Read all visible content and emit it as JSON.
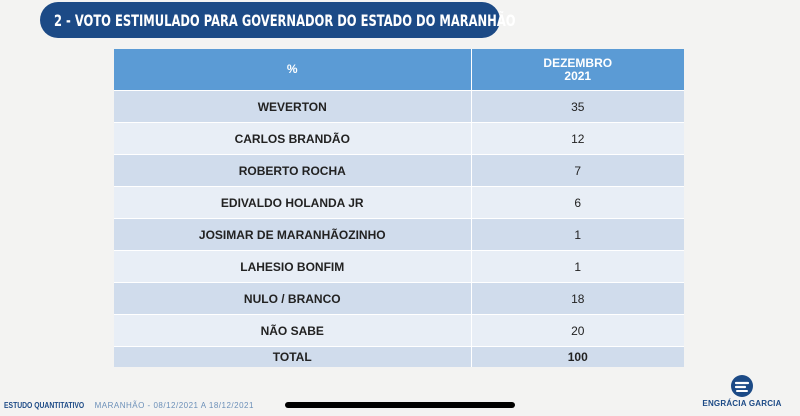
{
  "title": "2 - VOTO ESTIMULADO PARA GOVERNADOR DO ESTADO DO MARANHÃO",
  "table": {
    "header": {
      "col1": "%",
      "col2_line1": "DEZEMBRO",
      "col2_line2": "2021"
    },
    "rows": [
      {
        "name": "WEVERTON",
        "value": "35"
      },
      {
        "name": "CARLOS BRANDÃO",
        "value": "12"
      },
      {
        "name": "ROBERTO ROCHA",
        "value": "7"
      },
      {
        "name": "EDIVALDO HOLANDA JR",
        "value": "6"
      },
      {
        "name": "JOSIMAR DE MARANHÃOZINHO",
        "value": "1"
      },
      {
        "name": "LAHESIO BONFIM",
        "value": "1"
      },
      {
        "name": "NULO / BRANCO",
        "value": "18"
      },
      {
        "name": "NÃO SABE",
        "value": "20"
      }
    ],
    "total": {
      "name": "TOTAL",
      "value": "100"
    }
  },
  "footer": {
    "study": "ESTUDO QUANTITATIVO",
    "region_dates": "MARANHÃO - 08/12/2021 A 18/12/2021"
  },
  "logo": {
    "brand": "ENGRÁCIA GARCIA",
    "icon": "engracia-garcia-logo-icon"
  },
  "colors": {
    "title_bg": "#1c4a86",
    "header_bg": "#5b9bd5",
    "row_dark": "#d0dcec",
    "row_light": "#e8eef6"
  }
}
